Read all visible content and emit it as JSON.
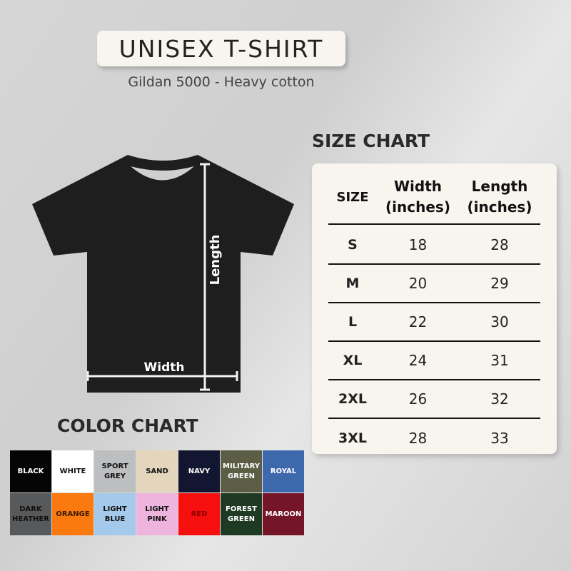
{
  "header": {
    "title": "UNISEX T-SHIRT",
    "subtitle": "Gildan 5000 - Heavy cotton"
  },
  "diagram": {
    "length_label": "Length",
    "width_label": "Width"
  },
  "size_chart": {
    "heading": "SIZE CHART",
    "columns": [
      "SIZE",
      "Width (inches)",
      "Length (inches)"
    ],
    "rows": [
      {
        "size": "S",
        "width": "18",
        "length": "28"
      },
      {
        "size": "M",
        "width": "20",
        "length": "29"
      },
      {
        "size": "L",
        "width": "22",
        "length": "30"
      },
      {
        "size": "XL",
        "width": "24",
        "length": "31"
      },
      {
        "size": "2XL",
        "width": "26",
        "length": "32"
      },
      {
        "size": "3XL",
        "width": "28",
        "length": "33"
      }
    ]
  },
  "color_chart": {
    "heading": "COLOR CHART",
    "colors": [
      {
        "label": "BLACK",
        "color": "#050505",
        "text": "#ffffff"
      },
      {
        "label": "WHITE",
        "color": "#ffffff",
        "text": "#111111"
      },
      {
        "label": "SPORT GREY",
        "color": "#bdbec0",
        "text": "#111111"
      },
      {
        "label": "SAND",
        "color": "#e3d6bd",
        "text": "#111111"
      },
      {
        "label": "NAVY",
        "color": "#121630",
        "text": "#ffffff"
      },
      {
        "label": "MILITARY GREEN",
        "color": "#5b5d45",
        "text": "#ffffff"
      },
      {
        "label": "ROYAL",
        "color": "#3e68ac",
        "text": "#ffffff"
      },
      {
        "label": "DARK HEATHER",
        "color": "#58595b",
        "text": "#111111"
      },
      {
        "label": "ORANGE",
        "color": "#fb7a10",
        "text": "#3a1a00"
      },
      {
        "label": "LIGHT BLUE",
        "color": "#a5c9ea",
        "text": "#111111"
      },
      {
        "label": "LIGHT PINK",
        "color": "#eeb4de",
        "text": "#111111"
      },
      {
        "label": "RED",
        "color": "#f70f0f",
        "text": "#8a0000"
      },
      {
        "label": "FOREST GREEN",
        "color": "#1f3a22",
        "text": "#ffffff"
      },
      {
        "label": "MAROON",
        "color": "#741628",
        "text": "#ffffff"
      }
    ]
  }
}
